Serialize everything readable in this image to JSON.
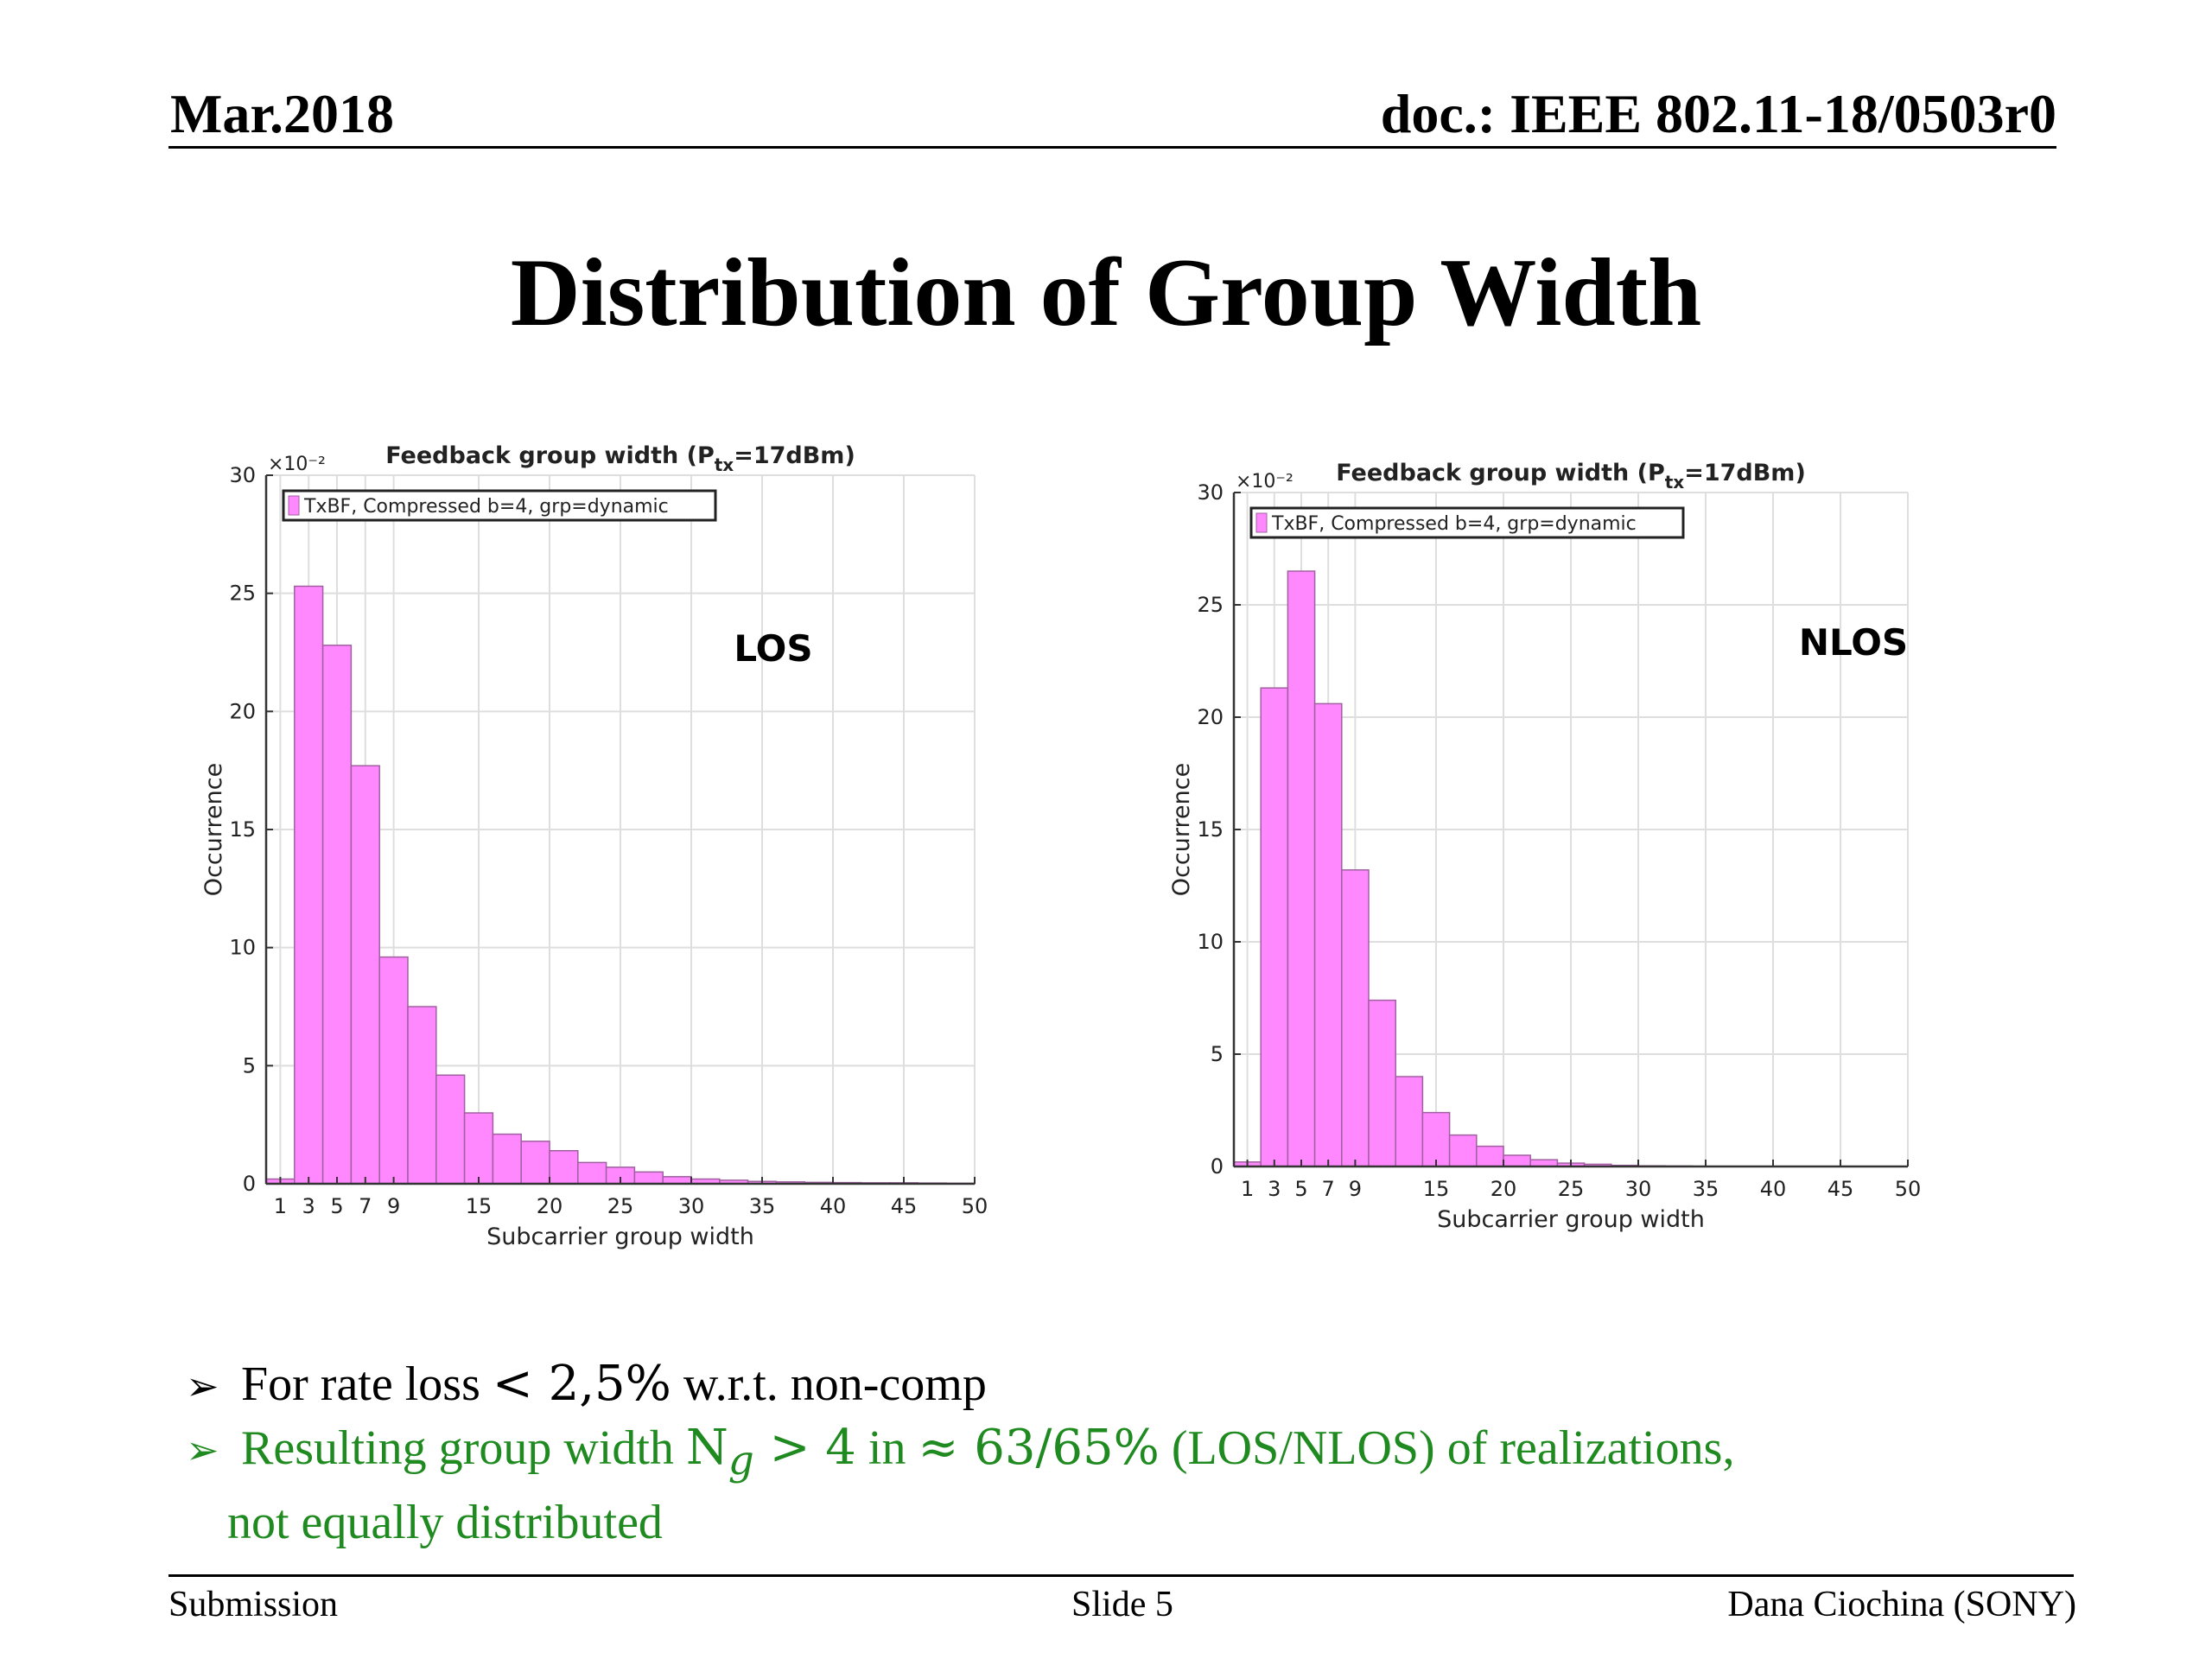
{
  "header": {
    "date": "Mar.2018",
    "doc": "doc.: IEEE 802.11-18/0503r0"
  },
  "slide_title": "Distribution of Group Width",
  "charts_text": {
    "los": {
      "title": "Feedback group width (P",
      "title_sub": "tx",
      "title_end": "=17dBm)",
      "legend": "TxBF,  Compressed b=4, grp=dynamic",
      "annotation": "LOS",
      "ylabel": "Occurrence",
      "xlabel": "Subcarrier group width",
      "yscale": "×10⁻²"
    },
    "nlos": {
      "title": "Feedback group width (P",
      "title_sub": "tx",
      "title_end": "=17dBm)",
      "legend": "TxBF,  Compressed b=4, grp=dynamic",
      "annotation": "NLOS",
      "ylabel": "Occurrence",
      "xlabel": "Subcarrier group width",
      "yscale": "×10⁻²"
    }
  },
  "chart_data": [
    {
      "type": "bar",
      "title": "Feedback group width (Ptx=17dBm)",
      "xlabel": "Subcarrier group width",
      "ylabel": "Occurrence",
      "y_multiplier": "×10^-2",
      "xlim": [
        0,
        50
      ],
      "ylim": [
        0,
        30
      ],
      "xticks": [
        1,
        3,
        5,
        7,
        9,
        15,
        20,
        25,
        30,
        35,
        40,
        45,
        50
      ],
      "yticks": [
        0,
        5,
        10,
        15,
        20,
        25,
        30
      ],
      "grid": true,
      "legend_position": "top-left",
      "bar_color": "#ff88ff",
      "series": [
        {
          "name": "TxBF,  Compressed b=4, grp=dynamic",
          "x": [
            1,
            3,
            5,
            7,
            9,
            11,
            13,
            15,
            17,
            19,
            21,
            23,
            25,
            27,
            29,
            31,
            33,
            35,
            37,
            39,
            41,
            43,
            45,
            47,
            49
          ],
          "values": [
            0.2,
            25.3,
            22.8,
            17.7,
            9.6,
            7.5,
            4.6,
            3.0,
            2.1,
            1.8,
            1.4,
            0.9,
            0.7,
            0.5,
            0.3,
            0.2,
            0.15,
            0.1,
            0.08,
            0.06,
            0.05,
            0.04,
            0.04,
            0.03,
            0.02
          ]
        }
      ]
    },
    {
      "type": "bar",
      "title": "Feedback group width (Ptx=17dBm)",
      "xlabel": "Subcarrier group width",
      "ylabel": "Occurrence",
      "y_multiplier": "×10^-2",
      "xlim": [
        0,
        50
      ],
      "ylim": [
        0,
        30
      ],
      "xticks": [
        1,
        3,
        5,
        7,
        9,
        15,
        20,
        25,
        30,
        35,
        40,
        45,
        50
      ],
      "yticks": [
        0,
        5,
        10,
        15,
        20,
        25,
        30
      ],
      "grid": true,
      "legend_position": "top-left",
      "bar_color": "#ff88ff",
      "series": [
        {
          "name": "TxBF,  Compressed b=4, grp=dynamic",
          "x": [
            1,
            3,
            5,
            7,
            9,
            11,
            13,
            15,
            17,
            19,
            21,
            23,
            25,
            27,
            29,
            31,
            33,
            35,
            37,
            39,
            41,
            43,
            45,
            47,
            49
          ],
          "values": [
            0.2,
            21.3,
            26.5,
            20.6,
            13.2,
            7.4,
            4.0,
            2.4,
            1.4,
            0.9,
            0.5,
            0.3,
            0.15,
            0.1,
            0.05,
            0.03,
            0.02,
            0.01,
            0.01,
            0.01,
            0.0,
            0.0,
            0.0,
            0.0,
            0.0
          ]
        }
      ]
    }
  ],
  "bullets": {
    "b1_text": "For rate loss ",
    "b1_math": "< 2,5%",
    "b1_tail": "  w.r.t. non-comp",
    "b2_text": "Resulting group width ",
    "b2_math_a": "N",
    "b2_math_sub": "g",
    "b2_math_b": " > 4",
    "b2_in": "  in ",
    "b2_math_c": "≈ 63/65%",
    "b2_tail": " (LOS/NLOS) of realizations,",
    "b2_cont": "not equally distributed",
    "arrow": "➢"
  },
  "footer": {
    "left": "Submission",
    "mid": "Slide 5",
    "right": "Dana Ciochina (SONY)"
  }
}
